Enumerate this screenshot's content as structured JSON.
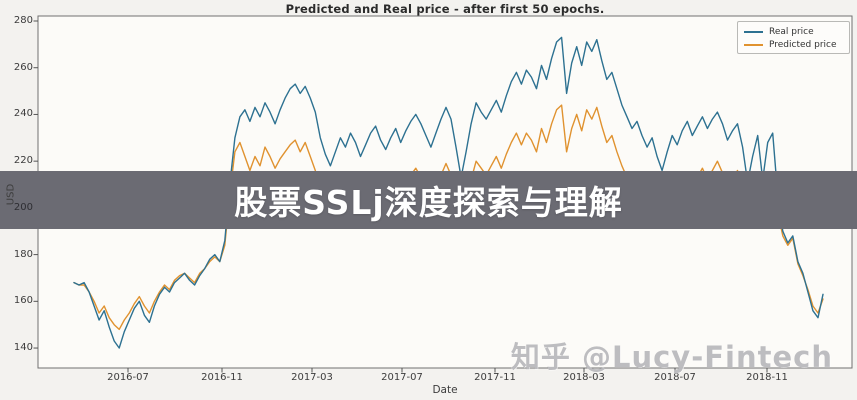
{
  "chart_data": {
    "type": "line",
    "title": "Predicted and Real price - after first 50 epochs.",
    "xlabel": "Date",
    "ylabel": "USD",
    "x_tick_labels": [
      "2016-07",
      "2016-11",
      "2017-03",
      "2017-07",
      "2017-11",
      "2018-03",
      "2018-07",
      "2018-11"
    ],
    "y_tick_labels": [
      "280",
      "260",
      "240",
      "220",
      "200",
      "180",
      "160",
      "140"
    ],
    "y_tick_values": [
      280,
      260,
      240,
      220,
      200,
      180,
      160,
      140
    ],
    "ylim": [
      131,
      283
    ],
    "grid": false,
    "legend_position": "upper right",
    "series": [
      {
        "name": "Real price",
        "color": "#2d7191",
        "values": [
          168,
          167,
          168,
          164,
          158,
          152,
          156,
          149,
          143,
          140,
          147,
          152,
          157,
          160,
          154,
          151,
          158,
          163,
          166,
          164,
          168,
          170,
          172,
          169,
          167,
          171,
          174,
          178,
          180,
          177,
          186,
          210,
          230,
          239,
          242,
          237,
          243,
          239,
          245,
          241,
          236,
          242,
          247,
          251,
          253,
          249,
          252,
          247,
          241,
          230,
          223,
          218,
          224,
          230,
          226,
          232,
          228,
          222,
          227,
          232,
          235,
          229,
          225,
          230,
          234,
          228,
          233,
          237,
          240,
          236,
          231,
          226,
          232,
          238,
          243,
          238,
          226,
          213,
          224,
          236,
          245,
          241,
          238,
          242,
          246,
          241,
          248,
          254,
          258,
          253,
          259,
          256,
          251,
          261,
          255,
          264,
          271,
          273,
          249,
          262,
          269,
          261,
          271,
          267,
          272,
          263,
          255,
          258,
          251,
          244,
          239,
          234,
          237,
          231,
          226,
          230,
          222,
          216,
          224,
          231,
          227,
          233,
          237,
          231,
          235,
          239,
          234,
          238,
          241,
          236,
          229,
          233,
          236,
          226,
          211,
          222,
          231,
          212,
          228,
          232,
          205,
          190,
          185,
          188,
          177,
          172,
          164,
          156,
          153,
          163
        ]
      },
      {
        "name": "Predicted price",
        "color": "#e0922f",
        "values": [
          168,
          167,
          167,
          164,
          160,
          155,
          158,
          153,
          150,
          148,
          152,
          155,
          159,
          162,
          158,
          155,
          160,
          164,
          167,
          165,
          169,
          171,
          172,
          170,
          168,
          172,
          174,
          177,
          179,
          177,
          184,
          206,
          224,
          228,
          222,
          216,
          222,
          218,
          226,
          222,
          217,
          221,
          224,
          227,
          229,
          224,
          228,
          222,
          216,
          208,
          203,
          199,
          204,
          209,
          205,
          211,
          207,
          201,
          205,
          210,
          213,
          207,
          203,
          208,
          212,
          206,
          210,
          214,
          217,
          213,
          208,
          203,
          209,
          214,
          219,
          214,
          204,
          193,
          202,
          212,
          220,
          217,
          214,
          218,
          222,
          217,
          223,
          228,
          232,
          227,
          232,
          229,
          224,
          234,
          228,
          236,
          242,
          244,
          224,
          234,
          240,
          233,
          242,
          238,
          243,
          235,
          228,
          231,
          224,
          218,
          213,
          208,
          211,
          206,
          201,
          205,
          198,
          193,
          200,
          207,
          204,
          210,
          214,
          209,
          213,
          217,
          212,
          216,
          220,
          215,
          209,
          213,
          216,
          207,
          196,
          205,
          213,
          198,
          210,
          214,
          198,
          188,
          184,
          187,
          176,
          171,
          165,
          158,
          155,
          161
        ]
      }
    ]
  },
  "legend": {
    "items": [
      {
        "label": "Real price",
        "color": "#2d7191"
      },
      {
        "label": "Predicted price",
        "color": "#e0922f"
      }
    ]
  },
  "overlay": {
    "banner_text": "股票SSLj深度探索与理解",
    "banner_color": "#6b6b73"
  },
  "watermark": {
    "text": "知乎 @Lucy-Fintech"
  }
}
